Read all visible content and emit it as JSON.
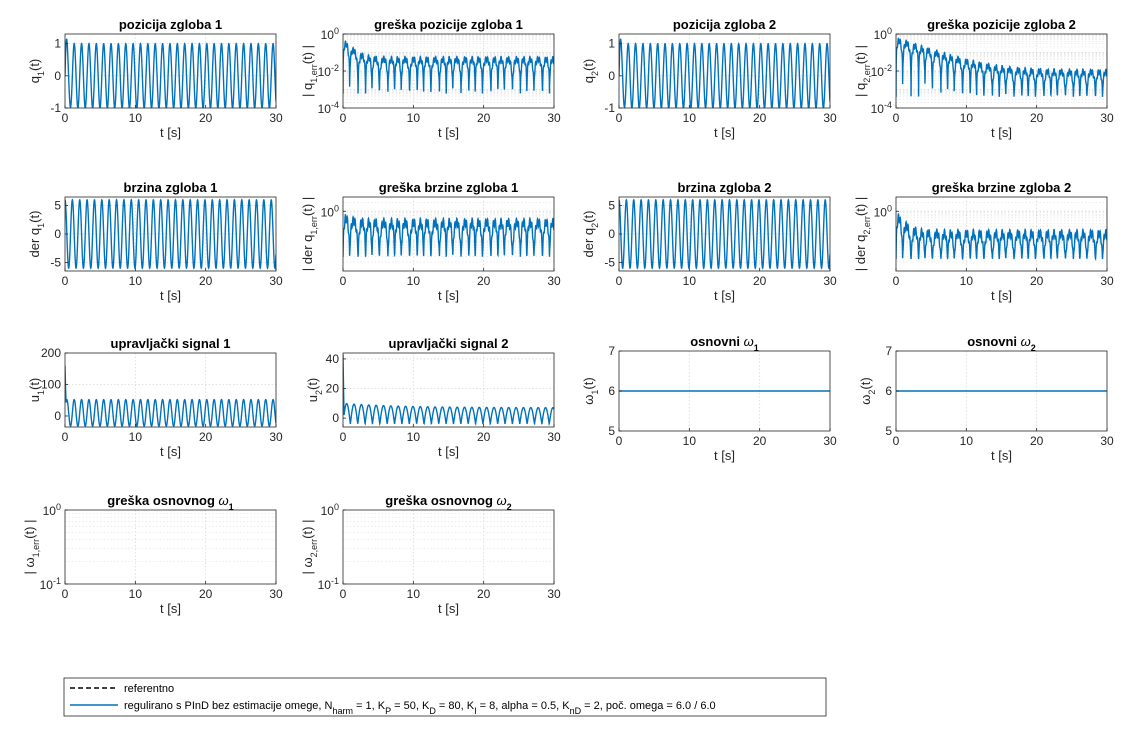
{
  "colors": {
    "series": "#0072BD",
    "reference": "#000000",
    "axis": "#262626",
    "grid": "#d9d9d9"
  },
  "legend": {
    "placement": "bottom-left",
    "entries": [
      {
        "label": "referentno",
        "style": "dashed",
        "color": "#000000"
      },
      {
        "label": "regulirano s PInD bez estimacije omege, N",
        "sub": "harm",
        "rest": " = 1, K",
        "style": "solid",
        "color": "#0072BD"
      }
    ],
    "text_ref": "referentno",
    "text_ctrl_parts": [
      {
        "t": "regulirano s PInD bez estimacije omege, N"
      },
      {
        "t": "harm",
        "s": true
      },
      {
        "t": " = 1, K"
      },
      {
        "t": "P",
        "s": true
      },
      {
        "t": " = 50, K"
      },
      {
        "t": "D",
        "s": true
      },
      {
        "t": " = 80, K"
      },
      {
        "t": "I",
        "s": true
      },
      {
        "t": " = 8, alpha = 0.5, K"
      },
      {
        "t": "nD",
        "s": true
      },
      {
        "t": " = 2, poč. omega = 6.0 / 6.0"
      }
    ]
  },
  "chart_data": [
    {
      "id": "q1",
      "type": "line",
      "title": "pozicija zgloba 1",
      "xlabel": "t [s]",
      "ylabel": [
        {
          "t": "q"
        },
        {
          "t": "1",
          "s": true
        },
        {
          "t": "(t)"
        }
      ],
      "xlim": [
        0,
        30
      ],
      "xticks": [
        "0",
        "10",
        "20",
        "30"
      ],
      "ylim": [
        -1,
        1.3
      ],
      "yscale": "linear",
      "yticks": [
        {
          "v": -1,
          "label": "-1"
        },
        {
          "v": 0,
          "label": "0"
        },
        {
          "v": 1,
          "label": "1"
        }
      ],
      "grid": true,
      "series": [
        {
          "kind": "sine",
          "amp": 1.0,
          "omega": 6.0,
          "phase": 0,
          "offset": 0,
          "t0": 0,
          "t1": 30,
          "transient": "overshoot"
        }
      ]
    },
    {
      "id": "q1err",
      "type": "line",
      "title": "greška pozicije zgloba 1",
      "xlabel": "t [s]",
      "ylabel": [
        {
          "t": "| q"
        },
        {
          "t": "1,err",
          "s": true
        },
        {
          "t": "(t) |"
        }
      ],
      "xlim": [
        0,
        30
      ],
      "xticks": [
        "0",
        "10",
        "20",
        "30"
      ],
      "ylim": [
        0.0001,
        1
      ],
      "yscale": "log",
      "yticks": [
        {
          "v": 0.0001,
          "base": "10",
          "exp": "-4"
        },
        {
          "v": 0.01,
          "base": "10",
          "exp": "-2"
        },
        {
          "v": 1,
          "base": "10",
          "exp": "0"
        }
      ],
      "grid": true,
      "series": [
        {
          "kind": "logosc",
          "start": 0.6,
          "level": 0.06,
          "depth": 0.0006,
          "omega": 6.0,
          "decay": 1.0
        }
      ]
    },
    {
      "id": "q2",
      "type": "line",
      "title": "pozicija zgloba 2",
      "xlabel": "t [s]",
      "ylabel": [
        {
          "t": "q"
        },
        {
          "t": "2",
          "s": true
        },
        {
          "t": "(t)"
        }
      ],
      "xlim": [
        0,
        30
      ],
      "xticks": [
        "0",
        "10",
        "20",
        "30"
      ],
      "ylim": [
        -1,
        1.3
      ],
      "yscale": "linear",
      "yticks": [
        {
          "v": -1,
          "label": "-1"
        },
        {
          "v": 0,
          "label": "0"
        },
        {
          "v": 1,
          "label": "1"
        }
      ],
      "grid": true,
      "series": [
        {
          "kind": "sine",
          "amp": 1.0,
          "omega": 6.0,
          "phase": 0,
          "offset": 0,
          "t0": 0,
          "t1": 30,
          "transient": "overshoot"
        }
      ]
    },
    {
      "id": "q2err",
      "type": "line",
      "title": "greška pozicije zgloba 2",
      "xlabel": "t [s]",
      "ylabel": [
        {
          "t": "| q"
        },
        {
          "t": "2,err",
          "s": true
        },
        {
          "t": "(t) |"
        }
      ],
      "xlim": [
        0,
        30
      ],
      "xticks": [
        "0",
        "10",
        "20",
        "30"
      ],
      "ylim": [
        0.0001,
        1
      ],
      "yscale": "log",
      "yticks": [
        {
          "v": 0.0001,
          "base": "10",
          "exp": "-4"
        },
        {
          "v": 0.01,
          "base": "10",
          "exp": "-2"
        },
        {
          "v": 1,
          "base": "10",
          "exp": "0"
        }
      ],
      "grid": true,
      "series": [
        {
          "kind": "logosc",
          "start": 0.7,
          "level": 0.012,
          "depth": 0.0004,
          "omega": 6.0,
          "decay": 0.3
        }
      ]
    },
    {
      "id": "dq1",
      "type": "line",
      "title": "brzina zgloba 1",
      "xlabel": "t [s]",
      "ylabel": [
        {
          "t": "der q"
        },
        {
          "t": "1",
          "s": true
        },
        {
          "t": "(t)"
        }
      ],
      "xlim": [
        0,
        30
      ],
      "xticks": [
        "0",
        "10",
        "20",
        "30"
      ],
      "ylim": [
        -6.5,
        6.5
      ],
      "yscale": "linear",
      "yticks": [
        {
          "v": -5,
          "label": "-5"
        },
        {
          "v": 0,
          "label": "0"
        },
        {
          "v": 5,
          "label": "5"
        }
      ],
      "grid": true,
      "series": [
        {
          "kind": "sine",
          "amp": 6.0,
          "omega": 6.0,
          "phase": 1.5708,
          "offset": 0,
          "t0": 0,
          "t1": 30
        }
      ]
    },
    {
      "id": "dq1err",
      "type": "line",
      "title": "greška brzine zgloba 1",
      "xlabel": "t [s]",
      "ylabel": [
        {
          "t": "| der q"
        },
        {
          "t": "1,err",
          "s": true
        },
        {
          "t": "(t) |"
        }
      ],
      "xlim": [
        0,
        30
      ],
      "xticks": [
        "0",
        "10",
        "20",
        "30"
      ],
      "ylim": [
        0.01,
        3
      ],
      "yscale": "log",
      "yticks": [
        {
          "v": 1,
          "base": "10",
          "exp": "0"
        }
      ],
      "grid": true,
      "series": [
        {
          "kind": "logosc",
          "start": 0.9,
          "level": 0.55,
          "depth": 0.03,
          "omega": 6.0,
          "decay": 1.0
        }
      ]
    },
    {
      "id": "dq2",
      "type": "line",
      "title": "brzina zgloba 2",
      "xlabel": "t [s]",
      "ylabel": [
        {
          "t": "der q"
        },
        {
          "t": "2",
          "s": true
        },
        {
          "t": "(t)"
        }
      ],
      "xlim": [
        0,
        30
      ],
      "xticks": [
        "0",
        "10",
        "20",
        "30"
      ],
      "ylim": [
        -6.5,
        6.5
      ],
      "yscale": "linear",
      "yticks": [
        {
          "v": -5,
          "label": "-5"
        },
        {
          "v": 0,
          "label": "0"
        },
        {
          "v": 5,
          "label": "5"
        }
      ],
      "grid": true,
      "series": [
        {
          "kind": "sine",
          "amp": 6.0,
          "omega": 6.0,
          "phase": 1.5708,
          "offset": 0,
          "t0": 0,
          "t1": 30
        }
      ]
    },
    {
      "id": "dq2err",
      "type": "line",
      "title": "greška brzine zgloba 2",
      "xlabel": "t [s]",
      "ylabel": [
        {
          "t": "| der q"
        },
        {
          "t": "2,err",
          "s": true
        },
        {
          "t": "(t) |"
        }
      ],
      "xlim": [
        0,
        30
      ],
      "xticks": [
        "0",
        "10",
        "20",
        "30"
      ],
      "ylim": [
        0.01,
        3
      ],
      "yscale": "log",
      "yticks": [
        {
          "v": 1,
          "base": "10",
          "exp": "0"
        }
      ],
      "grid": true,
      "series": [
        {
          "kind": "logosc",
          "start": 1.1,
          "level": 0.22,
          "depth": 0.025,
          "omega": 6.0,
          "decay": 1.0
        }
      ]
    },
    {
      "id": "u1",
      "type": "line",
      "title": "upravljački signal 1",
      "xlabel": "t [s]",
      "ylabel": [
        {
          "t": "u"
        },
        {
          "t": "1",
          "s": true
        },
        {
          "t": "(t)"
        }
      ],
      "xlim": [
        0,
        30
      ],
      "xticks": [
        "0",
        "10",
        "20",
        "30"
      ],
      "ylim": [
        -35,
        200
      ],
      "yscale": "linear",
      "yticks": [
        {
          "v": 0,
          "label": "0"
        },
        {
          "v": 100,
          "label": "100"
        },
        {
          "v": 200,
          "label": "200"
        }
      ],
      "grid": true,
      "series": [
        {
          "kind": "sine",
          "amp": 42,
          "omega": 6.0,
          "phase": 0,
          "offset": 10,
          "t0": 0,
          "t1": 30,
          "spike": 160
        }
      ]
    },
    {
      "id": "u2",
      "type": "line",
      "title": "upravljački signal 2",
      "xlabel": "t [s]",
      "ylabel": [
        {
          "t": "u"
        },
        {
          "t": "2",
          "s": true
        },
        {
          "t": "(t)"
        }
      ],
      "xlim": [
        0,
        30
      ],
      "xticks": [
        "0",
        "10",
        "20",
        "30"
      ],
      "ylim": [
        -6,
        44
      ],
      "yscale": "linear",
      "yticks": [
        {
          "v": 0,
          "label": "0"
        },
        {
          "v": 20,
          "label": "20"
        },
        {
          "v": 40,
          "label": "40"
        }
      ],
      "grid": true,
      "series": [
        {
          "kind": "abs",
          "amp": 14,
          "omega": 3.0,
          "offset": -4,
          "t0": 0,
          "t1": 30,
          "spike": 43,
          "decay_to": 11
        }
      ]
    },
    {
      "id": "w1",
      "type": "line",
      "title": "osnovni ",
      "title_sym": "ω",
      "title_sub": "1",
      "xlabel": "t [s]",
      "ylabel": [
        {
          "t": "ω"
        },
        {
          "t": "1",
          "s": true
        },
        {
          "t": "(t)"
        }
      ],
      "xlim": [
        0,
        30
      ],
      "xticks": [
        "0",
        "10",
        "20",
        "30"
      ],
      "ylim": [
        5,
        7
      ],
      "yscale": "linear",
      "yticks": [
        {
          "v": 5,
          "label": "5"
        },
        {
          "v": 6,
          "label": "6"
        },
        {
          "v": 7,
          "label": "7"
        }
      ],
      "grid": true,
      "series": [
        {
          "kind": "const",
          "value": 6,
          "t0": 0,
          "t1": 30
        }
      ]
    },
    {
      "id": "w2",
      "type": "line",
      "title": "osnovni ",
      "title_sym": "ω",
      "title_sub": "2",
      "xlabel": "t [s]",
      "ylabel": [
        {
          "t": "ω"
        },
        {
          "t": "2",
          "s": true
        },
        {
          "t": "(t)"
        }
      ],
      "xlim": [
        0,
        30
      ],
      "xticks": [
        "0",
        "10",
        "20",
        "30"
      ],
      "ylim": [
        5,
        7
      ],
      "yscale": "linear",
      "yticks": [
        {
          "v": 5,
          "label": "5"
        },
        {
          "v": 6,
          "label": "6"
        },
        {
          "v": 7,
          "label": "7"
        }
      ],
      "grid": true,
      "series": [
        {
          "kind": "const",
          "value": 6,
          "t0": 0,
          "t1": 30
        }
      ]
    },
    {
      "id": "w1err",
      "type": "line",
      "title": "greška osnovnog ",
      "title_sym": "ω",
      "title_sub": "1",
      "xlabel": "t [s]",
      "ylabel": [
        {
          "t": "| ω"
        },
        {
          "t": "1,err",
          "s": true
        },
        {
          "t": "(t) |"
        }
      ],
      "xlim": [
        0,
        30
      ],
      "xticks": [
        "0",
        "10",
        "20",
        "30"
      ],
      "ylim": [
        0.1,
        1
      ],
      "yscale": "log",
      "yticks": [
        {
          "v": 0.1,
          "base": "10",
          "exp": "-1"
        },
        {
          "v": 1,
          "base": "10",
          "exp": "0"
        }
      ],
      "grid": true,
      "series": []
    },
    {
      "id": "w2err",
      "type": "line",
      "title": "greška osnovnog ",
      "title_sym": "ω",
      "title_sub": "2",
      "xlabel": "t [s]",
      "ylabel": [
        {
          "t": "| ω"
        },
        {
          "t": "2,err",
          "s": true
        },
        {
          "t": "(t) |"
        }
      ],
      "xlim": [
        0,
        30
      ],
      "xticks": [
        "0",
        "10",
        "20",
        "30"
      ],
      "ylim": [
        0.1,
        1
      ],
      "yscale": "log",
      "yticks": [
        {
          "v": 0.1,
          "base": "10",
          "exp": "-1"
        },
        {
          "v": 1,
          "base": "10",
          "exp": "0"
        }
      ],
      "grid": true,
      "series": []
    }
  ]
}
